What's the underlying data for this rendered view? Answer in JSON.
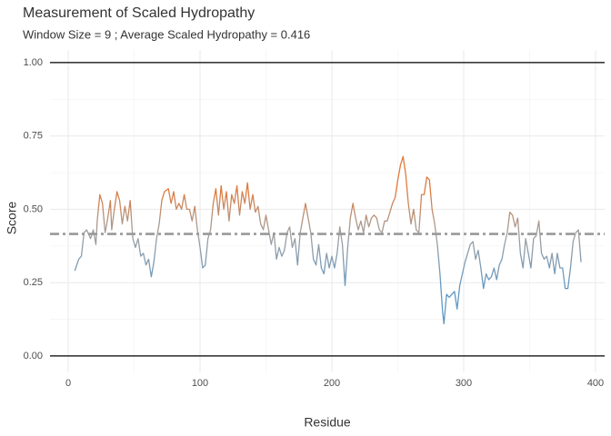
{
  "chart_data": {
    "type": "line",
    "title": "Measurement of Scaled Hydropathy",
    "subtitle": "Window Size = 9 ; Average Scaled Hydropathy = 0.416",
    "x_label": "Residue",
    "y_label": "Score",
    "xlim": [
      -13.8,
      406.9
    ],
    "ylim": [
      -0.056,
      1.043
    ],
    "xticks": [
      0,
      100,
      200,
      300,
      400
    ],
    "yticks": [
      {
        "value": 0,
        "label": "0.00"
      },
      {
        "value": 0.25,
        "label": "0.25"
      },
      {
        "value": 0.5,
        "label": "0.50"
      },
      {
        "value": 0.75,
        "label": "0.75"
      },
      {
        "value": 1,
        "label": "1.00"
      }
    ],
    "xminor": [
      50,
      150,
      250,
      350
    ],
    "yminor": [
      0.125,
      0.375,
      0.625,
      0.875
    ],
    "grid": true,
    "average": 0.416,
    "average_color": "#999999",
    "reference_lines": [
      0,
      1
    ],
    "colors": {
      "high": "#e07a3c",
      "mid": "#a0a0a0",
      "low": "#5f98c6"
    },
    "x": [
      5,
      8,
      10,
      12,
      14,
      17,
      19,
      21,
      22,
      24,
      26,
      28,
      30,
      32,
      33,
      35,
      37,
      39,
      41,
      43,
      45,
      47,
      49,
      51,
      53,
      55,
      57,
      59,
      61,
      63,
      65,
      67,
      69,
      71,
      73,
      76,
      78,
      80,
      82,
      84,
      86,
      88,
      90,
      92,
      94,
      96,
      98,
      100,
      102,
      104,
      106,
      108,
      110,
      112,
      114,
      116,
      118,
      120,
      122,
      124,
      126,
      128,
      130,
      132,
      134,
      136,
      138,
      140,
      142,
      144,
      146,
      148,
      150,
      152,
      154,
      156,
      158,
      160,
      162,
      164,
      166,
      168,
      170,
      172,
      174,
      176,
      178,
      180,
      182,
      184,
      186,
      188,
      190,
      192,
      194,
      196,
      198,
      200,
      202,
      204,
      206,
      208,
      210,
      212,
      214,
      216,
      218,
      220,
      222,
      224,
      226,
      228,
      230,
      232,
      234,
      236,
      238,
      240,
      242,
      244,
      246,
      248,
      250,
      252,
      254,
      256,
      258,
      260,
      262,
      264,
      266,
      268,
      270,
      272,
      274,
      276,
      278,
      280,
      282,
      284,
      285,
      287,
      289,
      291,
      293,
      295,
      297,
      299,
      301,
      303,
      305,
      307,
      309,
      311,
      313,
      315,
      317,
      319,
      321,
      323,
      325,
      327,
      329,
      331,
      333,
      335,
      337,
      339,
      341,
      343,
      345,
      347,
      349,
      351,
      353,
      355,
      357,
      359,
      361,
      363,
      365,
      367,
      369,
      371,
      373,
      375,
      377,
      379,
      381,
      383,
      385,
      387,
      389
    ],
    "values": [
      0.29,
      0.33,
      0.34,
      0.42,
      0.43,
      0.4,
      0.43,
      0.38,
      0.46,
      0.55,
      0.52,
      0.42,
      0.47,
      0.53,
      0.43,
      0.5,
      0.56,
      0.53,
      0.45,
      0.51,
      0.46,
      0.53,
      0.4,
      0.37,
      0.4,
      0.34,
      0.35,
      0.31,
      0.33,
      0.27,
      0.32,
      0.4,
      0.45,
      0.53,
      0.56,
      0.57,
      0.52,
      0.56,
      0.5,
      0.52,
      0.5,
      0.55,
      0.5,
      0.5,
      0.46,
      0.51,
      0.43,
      0.37,
      0.3,
      0.31,
      0.4,
      0.43,
      0.52,
      0.57,
      0.48,
      0.58,
      0.5,
      0.56,
      0.46,
      0.55,
      0.52,
      0.58,
      0.48,
      0.56,
      0.52,
      0.59,
      0.5,
      0.55,
      0.49,
      0.51,
      0.45,
      0.43,
      0.48,
      0.43,
      0.38,
      0.42,
      0.33,
      0.37,
      0.34,
      0.36,
      0.42,
      0.44,
      0.37,
      0.4,
      0.31,
      0.42,
      0.47,
      0.52,
      0.47,
      0.42,
      0.33,
      0.31,
      0.38,
      0.3,
      0.28,
      0.35,
      0.3,
      0.34,
      0.3,
      0.35,
      0.44,
      0.38,
      0.24,
      0.37,
      0.47,
      0.52,
      0.47,
      0.43,
      0.46,
      0.42,
      0.48,
      0.44,
      0.47,
      0.48,
      0.47,
      0.43,
      0.42,
      0.46,
      0.46,
      0.49,
      0.52,
      0.54,
      0.6,
      0.65,
      0.68,
      0.62,
      0.52,
      0.45,
      0.5,
      0.43,
      0.42,
      0.55,
      0.55,
      0.61,
      0.6,
      0.5,
      0.45,
      0.38,
      0.28,
      0.15,
      0.11,
      0.21,
      0.2,
      0.21,
      0.22,
      0.16,
      0.24,
      0.28,
      0.32,
      0.35,
      0.38,
      0.39,
      0.33,
      0.36,
      0.3,
      0.23,
      0.28,
      0.26,
      0.27,
      0.3,
      0.26,
      0.31,
      0.33,
      0.38,
      0.42,
      0.49,
      0.48,
      0.44,
      0.47,
      0.35,
      0.3,
      0.4,
      0.35,
      0.3,
      0.4,
      0.41,
      0.46,
      0.35,
      0.33,
      0.34,
      0.3,
      0.35,
      0.28,
      0.35,
      0.3,
      0.3,
      0.23,
      0.23,
      0.3,
      0.39,
      0.42,
      0.43,
      0.32
    ]
  }
}
